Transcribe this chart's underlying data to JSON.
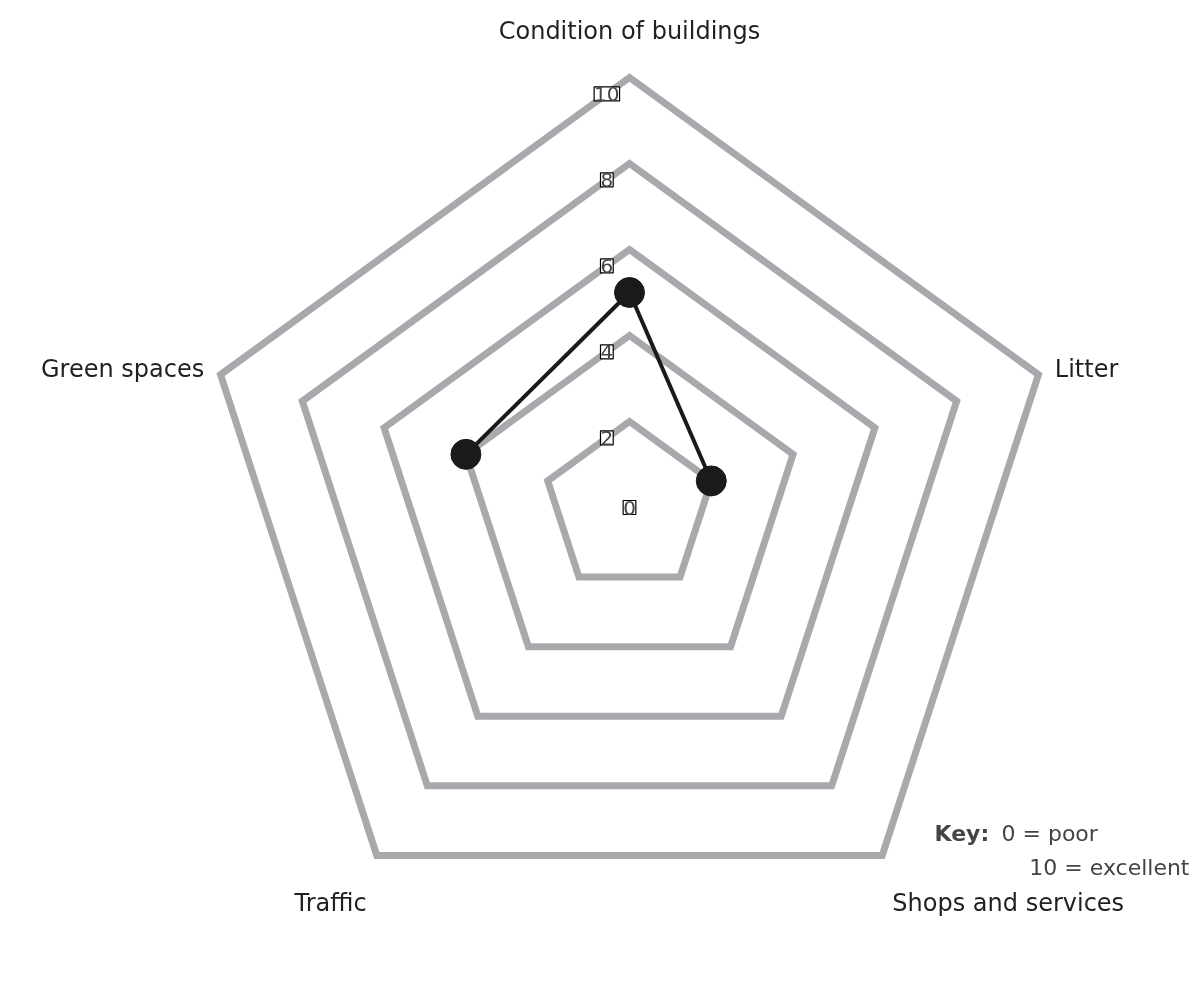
{
  "chart_data": {
    "type": "radar",
    "categories": [
      "Condition of buildings",
      "Litter",
      "Shops and services",
      "Traffic",
      "Green spaces"
    ],
    "series": [
      {
        "color": "#1a1a1a",
        "values": [
          5,
          2,
          null,
          null,
          4
        ]
      }
    ],
    "ylim": [
      0,
      10
    ],
    "yticks": [
      0,
      2,
      4,
      6,
      8,
      10
    ],
    "grid": true,
    "marker": "circle",
    "line_style": "solid",
    "annotations": [
      "Key: 0 = poor",
      "10 = excellent"
    ]
  }
}
